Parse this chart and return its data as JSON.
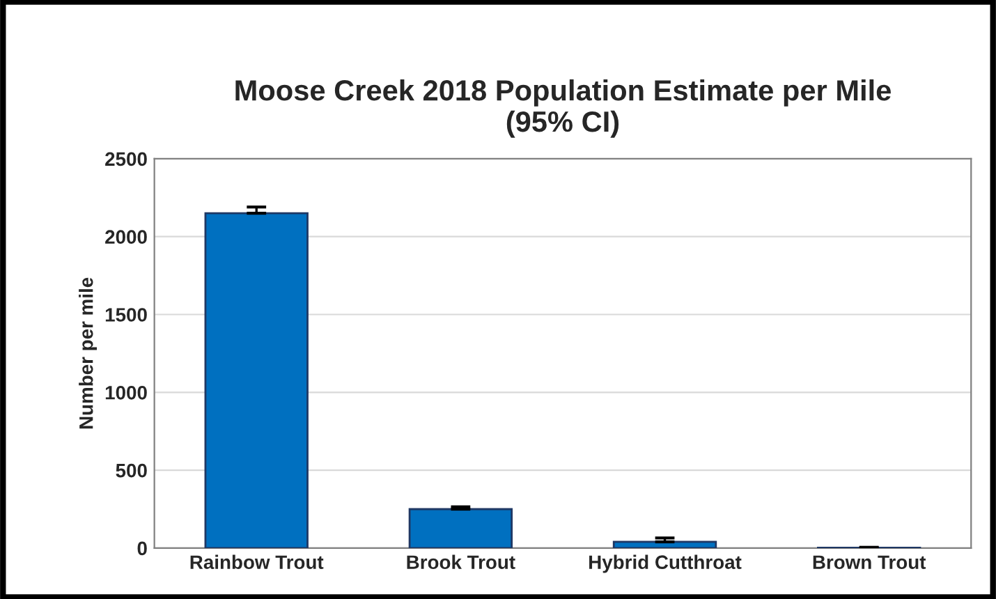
{
  "chart_data": {
    "type": "bar",
    "title": "Moose Creek 2018 Population Estimate per Mile\n(95% CI)",
    "ylabel": "Number per mile",
    "categories": [
      "Rainbow Trout",
      "Brook Trout",
      "Hybrid Cutthroat",
      "Brown Trout"
    ],
    "values": [
      2150,
      250,
      40,
      2
    ],
    "errors": [
      40,
      15,
      25,
      3
    ],
    "color": "#0070c0",
    "ylim": [
      0,
      2500
    ],
    "yticks": [
      0,
      500,
      1000,
      1500,
      2000,
      2500
    ],
    "grid": "y"
  }
}
